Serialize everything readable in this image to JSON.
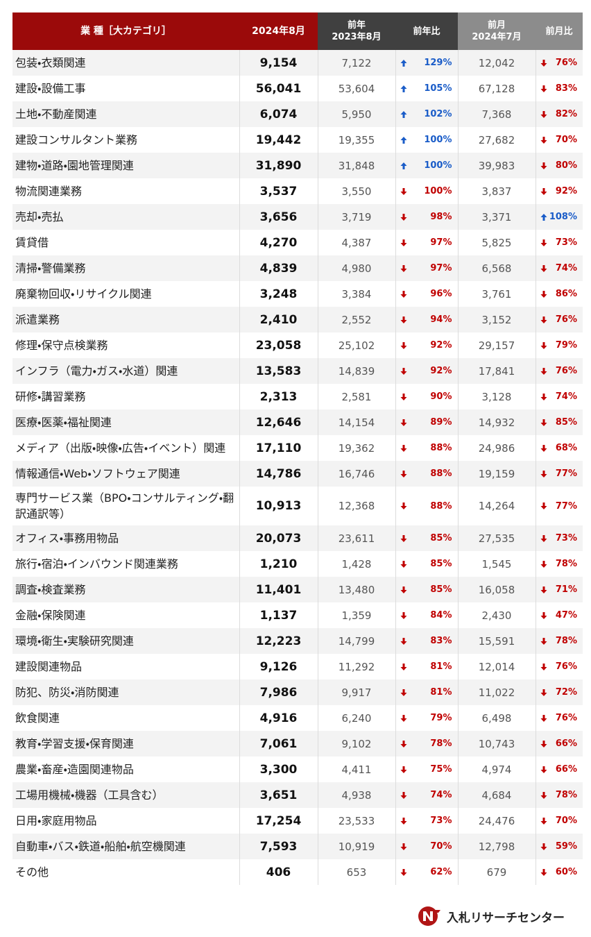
{
  "header": {
    "category": "業 種［大カテゴリ］",
    "current": "2024年8月",
    "prev_year_label": "前年",
    "prev_year_date": "2023年8月",
    "yoy": "前年比",
    "prev_month_label": "前月",
    "prev_month_date": "2024年7月",
    "mom": "前月比"
  },
  "table": {
    "rows": [
      {
        "category": "包装・衣類関連",
        "current": "9,154",
        "prev_year": "7,122",
        "yoy_trend": "up",
        "yoy": "129%",
        "prev_month": "12,042",
        "mom_trend": "down",
        "mom": "76%"
      },
      {
        "category": "建設・設備工事",
        "current": "56,041",
        "prev_year": "53,604",
        "yoy_trend": "up",
        "yoy": "105%",
        "prev_month": "67,128",
        "mom_trend": "down",
        "mom": "83%"
      },
      {
        "category": "土地・不動産関連",
        "current": "6,074",
        "prev_year": "5,950",
        "yoy_trend": "up",
        "yoy": "102%",
        "prev_month": "7,368",
        "mom_trend": "down",
        "mom": "82%"
      },
      {
        "category": "建設コンサルタント業務",
        "current": "19,442",
        "prev_year": "19,355",
        "yoy_trend": "up",
        "yoy": "100%",
        "prev_month": "27,682",
        "mom_trend": "down",
        "mom": "70%"
      },
      {
        "category": "建物・道路・園地管理関連",
        "current": "31,890",
        "prev_year": "31,848",
        "yoy_trend": "up",
        "yoy": "100%",
        "prev_month": "39,983",
        "mom_trend": "down",
        "mom": "80%"
      },
      {
        "category": "物流関連業務",
        "current": "3,537",
        "prev_year": "3,550",
        "yoy_trend": "down",
        "yoy": "100%",
        "prev_month": "3,837",
        "mom_trend": "down",
        "mom": "92%"
      },
      {
        "category": "売却・売払",
        "current": "3,656",
        "prev_year": "3,719",
        "yoy_trend": "down",
        "yoy": "98%",
        "prev_month": "3,371",
        "mom_trend": "up",
        "mom": "108%"
      },
      {
        "category": "賃貸借",
        "current": "4,270",
        "prev_year": "4,387",
        "yoy_trend": "down",
        "yoy": "97%",
        "prev_month": "5,825",
        "mom_trend": "down",
        "mom": "73%"
      },
      {
        "category": "清掃・警備業務",
        "current": "4,839",
        "prev_year": "4,980",
        "yoy_trend": "down",
        "yoy": "97%",
        "prev_month": "6,568",
        "mom_trend": "down",
        "mom": "74%"
      },
      {
        "category": "廃棄物回収・リサイクル関連",
        "current": "3,248",
        "prev_year": "3,384",
        "yoy_trend": "down",
        "yoy": "96%",
        "prev_month": "3,761",
        "mom_trend": "down",
        "mom": "86%"
      },
      {
        "category": "派遣業務",
        "current": "2,410",
        "prev_year": "2,552",
        "yoy_trend": "down",
        "yoy": "94%",
        "prev_month": "3,152",
        "mom_trend": "down",
        "mom": "76%"
      },
      {
        "category": "修理・保守点検業務",
        "current": "23,058",
        "prev_year": "25,102",
        "yoy_trend": "down",
        "yoy": "92%",
        "prev_month": "29,157",
        "mom_trend": "down",
        "mom": "79%"
      },
      {
        "category": "インフラ（電力・ガス・水道）関連",
        "current": "13,583",
        "prev_year": "14,839",
        "yoy_trend": "down",
        "yoy": "92%",
        "prev_month": "17,841",
        "mom_trend": "down",
        "mom": "76%"
      },
      {
        "category": "研修・講習業務",
        "current": "2,313",
        "prev_year": "2,581",
        "yoy_trend": "down",
        "yoy": "90%",
        "prev_month": "3,128",
        "mom_trend": "down",
        "mom": "74%"
      },
      {
        "category": "医療・医薬・福祉関連",
        "current": "12,646",
        "prev_year": "14,154",
        "yoy_trend": "down",
        "yoy": "89%",
        "prev_month": "14,932",
        "mom_trend": "down",
        "mom": "85%"
      },
      {
        "category": "メディア（出版・映像・広告・イベント）関連",
        "current": "17,110",
        "prev_year": "19,362",
        "yoy_trend": "down",
        "yoy": "88%",
        "prev_month": "24,986",
        "mom_trend": "down",
        "mom": "68%"
      },
      {
        "category": "情報通信・Web・ソフトウェア関連",
        "current": "14,786",
        "prev_year": "16,746",
        "yoy_trend": "down",
        "yoy": "88%",
        "prev_month": "19,159",
        "mom_trend": "down",
        "mom": "77%"
      },
      {
        "category": "専門サービス業（BPO・コンサルティング・翻訳通訳等）",
        "current": "10,913",
        "prev_year": "12,368",
        "yoy_trend": "down",
        "yoy": "88%",
        "prev_month": "14,264",
        "mom_trend": "down",
        "mom": "77%"
      },
      {
        "category": "オフィス・事務用物品",
        "current": "20,073",
        "prev_year": "23,611",
        "yoy_trend": "down",
        "yoy": "85%",
        "prev_month": "27,535",
        "mom_trend": "down",
        "mom": "73%"
      },
      {
        "category": "旅行・宿泊・インバウンド関連業務",
        "current": "1,210",
        "prev_year": "1,428",
        "yoy_trend": "down",
        "yoy": "85%",
        "prev_month": "1,545",
        "mom_trend": "down",
        "mom": "78%"
      },
      {
        "category": "調査・検査業務",
        "current": "11,401",
        "prev_year": "13,480",
        "yoy_trend": "down",
        "yoy": "85%",
        "prev_month": "16,058",
        "mom_trend": "down",
        "mom": "71%"
      },
      {
        "category": "金融・保険関連",
        "current": "1,137",
        "prev_year": "1,359",
        "yoy_trend": "down",
        "yoy": "84%",
        "prev_month": "2,430",
        "mom_trend": "down",
        "mom": "47%"
      },
      {
        "category": "環境・衛生・実験研究関連",
        "current": "12,223",
        "prev_year": "14,799",
        "yoy_trend": "down",
        "yoy": "83%",
        "prev_month": "15,591",
        "mom_trend": "down",
        "mom": "78%"
      },
      {
        "category": "建設関連物品",
        "current": "9,126",
        "prev_year": "11,292",
        "yoy_trend": "down",
        "yoy": "81%",
        "prev_month": "12,014",
        "mom_trend": "down",
        "mom": "76%"
      },
      {
        "category": "防犯、防災・消防関連",
        "current": "7,986",
        "prev_year": "9,917",
        "yoy_trend": "down",
        "yoy": "81%",
        "prev_month": "11,022",
        "mom_trend": "down",
        "mom": "72%"
      },
      {
        "category": "飲食関連",
        "current": "4,916",
        "prev_year": "6,240",
        "yoy_trend": "down",
        "yoy": "79%",
        "prev_month": "6,498",
        "mom_trend": "down",
        "mom": "76%"
      },
      {
        "category": "教育・学習支援・保育関連",
        "current": "7,061",
        "prev_year": "9,102",
        "yoy_trend": "down",
        "yoy": "78%",
        "prev_month": "10,743",
        "mom_trend": "down",
        "mom": "66%"
      },
      {
        "category": "農業・畜産・造園関連物品",
        "current": "3,300",
        "prev_year": "4,411",
        "yoy_trend": "down",
        "yoy": "75%",
        "prev_month": "4,974",
        "mom_trend": "down",
        "mom": "66%"
      },
      {
        "category": "工場用機械・機器（工具含む）",
        "current": "3,651",
        "prev_year": "4,938",
        "yoy_trend": "down",
        "yoy": "74%",
        "prev_month": "4,684",
        "mom_trend": "down",
        "mom": "78%"
      },
      {
        "category": "日用・家庭用物品",
        "current": "17,254",
        "prev_year": "23,533",
        "yoy_trend": "down",
        "yoy": "73%",
        "prev_month": "24,476",
        "mom_trend": "down",
        "mom": "70%"
      },
      {
        "category": "自動車・バス・鉄道・船舶・航空機関連",
        "current": "7,593",
        "prev_year": "10,919",
        "yoy_trend": "down",
        "yoy": "70%",
        "prev_month": "12,798",
        "mom_trend": "down",
        "mom": "59%"
      },
      {
        "category": "その他",
        "current": "406",
        "prev_year": "653",
        "yoy_trend": "down",
        "yoy": "62%",
        "prev_month": "679",
        "mom_trend": "down",
        "mom": "60%"
      }
    ]
  },
  "footer": {
    "brand": "入札リサーチセンター"
  }
}
